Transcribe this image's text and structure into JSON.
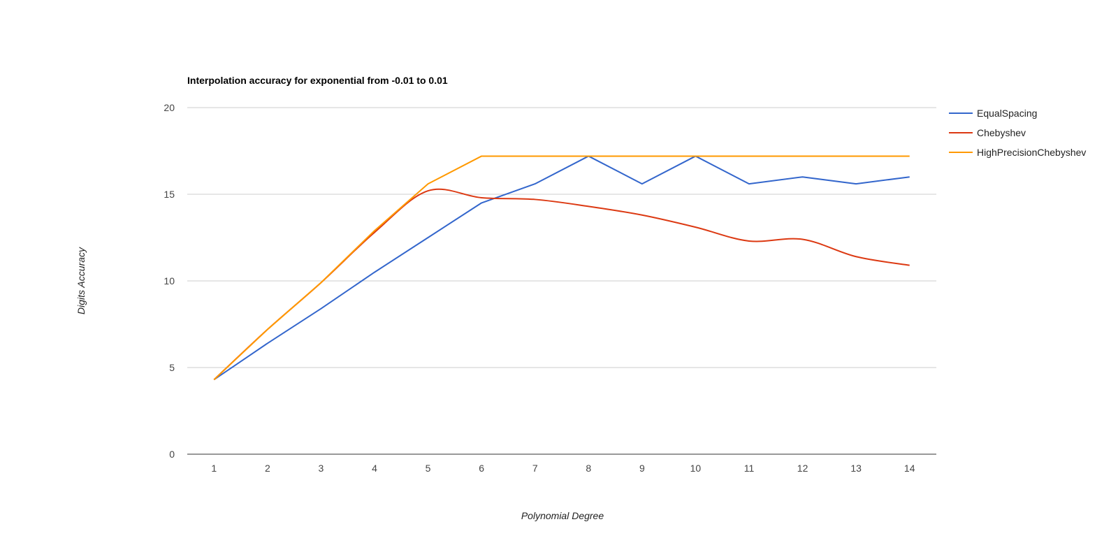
{
  "chart_data": {
    "type": "line",
    "title": "Interpolation accuracy for exponential from -0.01 to 0.01",
    "xlabel": "Polynomial Degree",
    "ylabel": "Digits Accuracy",
    "categories": [
      "1",
      "2",
      "3",
      "4",
      "5",
      "6",
      "7",
      "8",
      "9",
      "10",
      "11",
      "12",
      "13",
      "14"
    ],
    "x": [
      1,
      2,
      3,
      4,
      5,
      6,
      7,
      8,
      9,
      10,
      11,
      12,
      13,
      14
    ],
    "ylim": [
      0,
      20
    ],
    "yticks": [
      "0",
      "5",
      "10",
      "15",
      "20"
    ],
    "grid": true,
    "legend_position": "right",
    "series": [
      {
        "name": "EqualSpacing",
        "color": "#3366cc",
        "smooth": false,
        "values": [
          4.3,
          6.4,
          8.4,
          10.5,
          12.5,
          14.5,
          15.6,
          17.2,
          15.6,
          17.2,
          15.6,
          16.0,
          15.6,
          16.0
        ]
      },
      {
        "name": "Chebyshev",
        "color": "#dc3912",
        "smooth": true,
        "values": [
          4.3,
          7.2,
          9.9,
          12.8,
          15.2,
          14.8,
          14.7,
          14.3,
          13.8,
          13.1,
          12.3,
          12.4,
          11.4,
          10.9
        ]
      },
      {
        "name": "HighPrecisionChebyshev",
        "color": "#ff9900",
        "smooth": false,
        "values": [
          4.3,
          7.2,
          9.9,
          12.9,
          15.6,
          17.2,
          17.2,
          17.2,
          17.2,
          17.2,
          17.2,
          17.2,
          17.2,
          17.2
        ]
      }
    ]
  }
}
